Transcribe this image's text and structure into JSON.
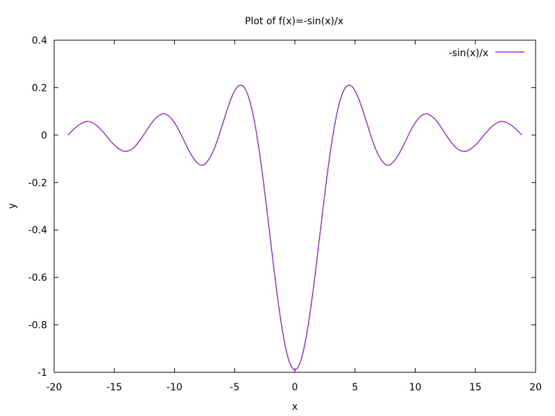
{
  "chart_data": {
    "type": "line",
    "title": "Plot of f(x)=-sin(x)/x",
    "xlabel": "x",
    "ylabel": "y",
    "xlim": [
      -20,
      20
    ],
    "ylim": [
      -1,
      0.4
    ],
    "xticks": [
      -20,
      -15,
      -10,
      -5,
      0,
      5,
      10,
      15,
      20
    ],
    "xtick_labels": [
      "-20",
      "-15",
      "-10",
      "-5",
      "0",
      "5",
      "10",
      "15",
      "20"
    ],
    "yticks": [
      -1,
      -0.8,
      -0.6,
      -0.4,
      -0.2,
      0,
      0.2,
      0.4
    ],
    "ytick_labels": [
      "-1",
      "-0.8",
      "-0.6",
      "-0.4",
      "-0.2",
      "0",
      "0.2",
      "0.4"
    ],
    "grid": false,
    "legend_position": "top-right",
    "series": [
      {
        "name": "-sin(x)/x",
        "color": "#9400d3",
        "x": [
          -18.85,
          -18.5,
          -18,
          -17.5,
          -17.2,
          -17,
          -16.5,
          -16,
          -15.5,
          -15,
          -14.5,
          -14.07,
          -13.5,
          -13,
          -12.5,
          -12,
          -11.5,
          -11,
          -10.9,
          -10.5,
          -10,
          -9.5,
          -9,
          -8.5,
          -8,
          -7.73,
          -7.5,
          -7,
          -6.5,
          -6,
          -5.5,
          -5,
          -4.49,
          -4,
          -3.5,
          -3,
          -2.5,
          -2,
          -1.5,
          -1,
          -0.5,
          0,
          0.5,
          1,
          1.5,
          2,
          2.5,
          3,
          3.5,
          4,
          4.49,
          5,
          5.5,
          6,
          6.5,
          7,
          7.5,
          7.73,
          8,
          8.5,
          9,
          9.5,
          10,
          10.5,
          10.9,
          11,
          11.5,
          12,
          12.5,
          13,
          13.5,
          14.07,
          14.5,
          15,
          15.5,
          16,
          16.5,
          17,
          17.2,
          17.5,
          18,
          18.5,
          18.85
        ],
        "y": [
          0.0,
          0.019,
          0.042,
          0.056,
          0.058,
          0.057,
          0.043,
          0.018,
          -0.014,
          -0.043,
          -0.063,
          -0.071,
          -0.06,
          -0.032,
          0.005,
          0.045,
          0.076,
          0.091,
          0.091,
          0.084,
          0.054,
          0.008,
          -0.046,
          -0.094,
          -0.124,
          -0.128,
          -0.125,
          -0.094,
          -0.033,
          0.047,
          0.128,
          0.192,
          0.217,
          0.189,
          0.1,
          -0.047,
          -0.239,
          -0.455,
          -0.665,
          -0.841,
          -0.959,
          -1.0,
          -0.959,
          -0.841,
          -0.665,
          -0.455,
          -0.239,
          -0.047,
          0.1,
          0.189,
          0.217,
          0.192,
          0.128,
          0.047,
          -0.033,
          -0.094,
          -0.125,
          -0.128,
          -0.124,
          -0.094,
          -0.046,
          0.008,
          0.054,
          0.084,
          0.091,
          0.091,
          0.076,
          0.045,
          0.005,
          -0.032,
          -0.06,
          -0.071,
          -0.063,
          -0.043,
          -0.014,
          0.018,
          0.043,
          0.057,
          0.058,
          0.056,
          0.042,
          0.019,
          0.0
        ]
      }
    ]
  }
}
